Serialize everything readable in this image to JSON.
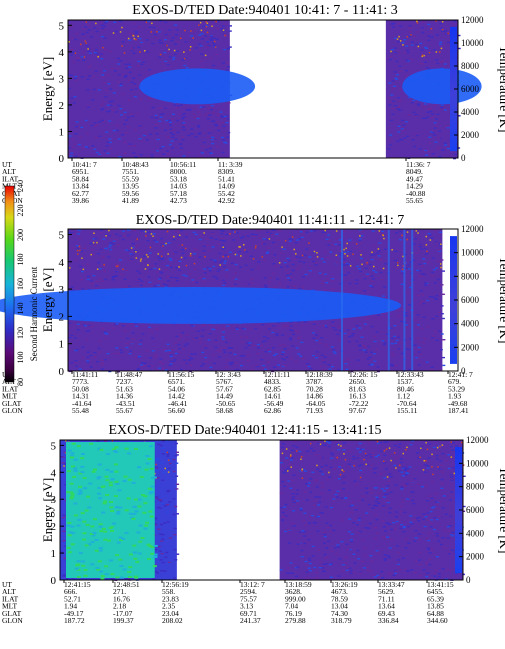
{
  "chart_data": [
    {
      "type": "heatmap",
      "title": "EXOS-D/TED   Date:940401  10:41: 7 - 11:41: 3",
      "ylabel": "Energy [eV]",
      "y2label": "Temperature [K]",
      "ylim": [
        0,
        5.2
      ],
      "yticks": [
        "0",
        "1",
        "2",
        "3",
        "4",
        "5"
      ],
      "y2lim": [
        0,
        12000
      ],
      "y2ticks": [
        "0",
        "2000",
        "4000",
        "6000",
        "8000",
        "10000",
        "12000"
      ],
      "band_center_ev": 2.7,
      "data_segments": [
        [
          0,
          0.415
        ],
        [
          0.815,
          1
        ]
      ],
      "table_labels": [
        "UT",
        "ALT",
        "ILAT",
        "MLT",
        "GLAT",
        "GLON"
      ],
      "table_columns": [
        [
          "10:41: 7",
          "6951.",
          "58.84",
          "13.84",
          "62.77",
          "39.86"
        ],
        [
          "10:48:43",
          "7551.",
          "55.59",
          "13.95",
          "59.56",
          "41.89"
        ],
        [
          "10:56:11",
          "8000.",
          "53.18",
          "14.03",
          "57.18",
          "42.73"
        ],
        [
          "11: 3:39",
          "8309.",
          "51.41",
          "14.09",
          "55.42",
          "42.92"
        ],
        [
          "11:36: 7",
          "8049.",
          "49.47",
          "14.29",
          "-40.88",
          "55.65"
        ]
      ]
    },
    {
      "type": "heatmap",
      "title": "EXOS-D/TED   Date:940401  11:41:11 - 12:41: 7",
      "ylabel": "Energy [eV]",
      "y2label": "Temperature [K]",
      "ylim": [
        0,
        5.2
      ],
      "yticks": [
        "0",
        "1",
        "2",
        "3",
        "4",
        "5"
      ],
      "y2lim": [
        0,
        12000
      ],
      "y2ticks": [
        "0",
        "2000",
        "4000",
        "6000",
        "8000",
        "10000",
        "12000"
      ],
      "band_center_ev": 2.4,
      "data_segments": [
        [
          0,
          0.96
        ]
      ],
      "table_labels": [
        "UT",
        "ALT",
        "ILAT",
        "MLT",
        "GLAT",
        "GLON"
      ],
      "table_columns": [
        [
          "11:41:11",
          "7773.",
          "50.08",
          "14.31",
          "-41.64",
          "55.48"
        ],
        [
          "11:48:47",
          "7237.",
          "51.63",
          "14.36",
          "-43.51",
          "55.67"
        ],
        [
          "11:56:15",
          "6571.",
          "54.06",
          "14.42",
          "-46.41",
          "56.60"
        ],
        [
          "12: 3:43",
          "5767.",
          "57.67",
          "14.49",
          "-50.65",
          "58.68"
        ],
        [
          "12:11:11",
          "4833.",
          "62.85",
          "14.61",
          "-56.49",
          "62.86"
        ],
        [
          "12:18:39",
          "3787.",
          "70.28",
          "14.86",
          "-64.05",
          "71.93"
        ],
        [
          "12:26: 15",
          "2650.",
          "81.63",
          "16.13",
          "-72.22",
          "97.67"
        ],
        [
          "12:33:43",
          "1537.",
          "80.46",
          "1.12",
          "-70.64",
          "155.11"
        ],
        [
          "12:41: 7",
          "679.",
          "53.29",
          "1.93",
          "-49.68",
          "187.41"
        ]
      ]
    },
    {
      "type": "heatmap",
      "title": "EXOS-D/TED   Date:940401  12:41:15 - 13:41:15",
      "ylabel": "Energy [eV]",
      "y2label": "Temperature [K]",
      "ylim": [
        0,
        5.2
      ],
      "yticks": [
        "0",
        "1",
        "2",
        "3",
        "4",
        "5"
      ],
      "y2lim": [
        0,
        12000
      ],
      "y2ticks": [
        "0",
        "2000",
        "4000",
        "6000",
        "8000",
        "10000",
        "12000"
      ],
      "data_segments": [
        [
          0,
          0.29
        ],
        [
          0.545,
          1
        ]
      ],
      "table_labels": [
        "UT",
        "ALT",
        "ILAT",
        "MLT",
        "GLAT",
        "GLON"
      ],
      "table_columns": [
        [
          "12:41:15",
          "666.",
          "52.71",
          "1.94",
          "-49.17",
          "187.72"
        ],
        [
          "12:48:51",
          "271.",
          "16.76",
          "2.18",
          "-17.07",
          "199.37"
        ],
        [
          "12:56:19",
          "558.",
          "23.83",
          "2.35",
          "23.04",
          "208.02"
        ],
        [
          "13:12: 7",
          "2594.",
          "75.57",
          "3.13",
          "69.71",
          "241.37"
        ],
        [
          "13:18:59",
          "3628.",
          "999.00",
          "7.04",
          "76.19",
          "279.88"
        ],
        [
          "13:26:19",
          "4673.",
          "78.59",
          "13.04",
          "74.30",
          "318.79"
        ],
        [
          "13:33:47",
          "5629.",
          "71.11",
          "13.64",
          "69.43",
          "336.84"
        ],
        [
          "13:41:15",
          "6455.",
          "65.39",
          "13.85",
          "64.88",
          "344.60"
        ]
      ]
    }
  ],
  "colorbar": {
    "label": "Second Harmonic Current",
    "ticks": [
      "80",
      "100",
      "120",
      "140",
      "160",
      "180",
      "200",
      "220",
      "240"
    ],
    "colors": [
      "#000000",
      "#3a003e",
      "#5c0a78",
      "#2e2ec8",
      "#1d6cf2",
      "#18b4d8",
      "#18c870",
      "#58d818",
      "#d8d818",
      "#f29018",
      "#e80000"
    ]
  }
}
